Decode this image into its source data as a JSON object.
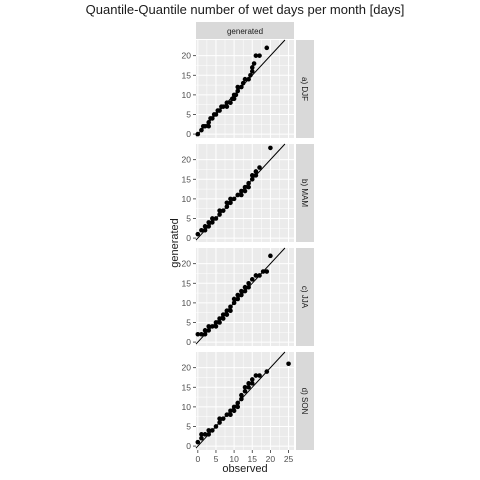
{
  "chart_data": {
    "type": "scatter",
    "title": "Quantile-Quantile number of wet days per month [days]",
    "xlabel": "observed",
    "ylabel": "generated",
    "column_strip": "generated",
    "xlim": [
      -0.5,
      26.5
    ],
    "ylim": [
      -1,
      24
    ],
    "xticks": [
      0,
      5,
      10,
      15,
      20,
      25
    ],
    "yticks": [
      0,
      5,
      10,
      15,
      20
    ],
    "grid": true,
    "reference_line": "y = x",
    "colors": {
      "panel": "#ebebeb",
      "strip": "#d9d9d9",
      "grid": "#ffffff",
      "point": "#000000",
      "line": "#000000"
    },
    "panels": [
      {
        "label": "a) DJF",
        "points": [
          [
            0,
            0
          ],
          [
            1,
            1
          ],
          [
            1.5,
            2
          ],
          [
            2,
            2
          ],
          [
            3,
            2
          ],
          [
            3,
            3
          ],
          [
            3.5,
            4
          ],
          [
            4,
            4
          ],
          [
            4.5,
            5
          ],
          [
            5,
            5
          ],
          [
            5.5,
            6
          ],
          [
            6,
            6
          ],
          [
            6.5,
            7
          ],
          [
            7,
            7
          ],
          [
            8,
            7
          ],
          [
            8,
            8
          ],
          [
            9,
            8
          ],
          [
            9.5,
            9
          ],
          [
            10,
            9
          ],
          [
            10,
            10
          ],
          [
            10.5,
            10
          ],
          [
            11,
            11
          ],
          [
            11,
            12
          ],
          [
            12,
            12
          ],
          [
            12.5,
            13
          ],
          [
            13,
            14
          ],
          [
            14,
            14
          ],
          [
            14.5,
            15
          ],
          [
            15,
            16
          ],
          [
            15,
            17
          ],
          [
            15.5,
            18
          ],
          [
            16,
            20
          ],
          [
            17,
            20
          ],
          [
            19,
            22
          ]
        ]
      },
      {
        "label": "b) MAM",
        "points": [
          [
            0,
            1
          ],
          [
            1,
            2
          ],
          [
            2,
            2
          ],
          [
            2,
            3
          ],
          [
            3,
            3
          ],
          [
            3,
            4
          ],
          [
            4,
            4
          ],
          [
            4,
            5
          ],
          [
            5,
            5
          ],
          [
            6,
            6
          ],
          [
            6,
            7
          ],
          [
            7,
            7
          ],
          [
            8,
            8
          ],
          [
            8,
            9
          ],
          [
            9,
            9
          ],
          [
            9,
            10
          ],
          [
            10,
            10
          ],
          [
            11,
            11
          ],
          [
            12,
            11
          ],
          [
            12,
            12
          ],
          [
            13,
            12
          ],
          [
            13,
            13
          ],
          [
            14,
            13
          ],
          [
            14,
            14
          ],
          [
            15,
            15
          ],
          [
            15,
            16
          ],
          [
            16,
            16
          ],
          [
            16,
            17
          ],
          [
            17,
            18
          ],
          [
            20,
            23
          ]
        ]
      },
      {
        "label": "c) JJA",
        "points": [
          [
            0,
            2
          ],
          [
            1,
            2
          ],
          [
            2,
            2
          ],
          [
            2,
            3
          ],
          [
            3,
            3
          ],
          [
            3,
            4
          ],
          [
            4,
            4
          ],
          [
            5,
            4
          ],
          [
            5,
            5
          ],
          [
            6,
            5
          ],
          [
            6,
            6
          ],
          [
            7,
            6
          ],
          [
            7,
            7
          ],
          [
            8,
            7
          ],
          [
            8,
            8
          ],
          [
            9,
            8
          ],
          [
            9,
            9
          ],
          [
            10,
            10
          ],
          [
            10,
            11
          ],
          [
            11,
            11
          ],
          [
            11,
            12
          ],
          [
            12,
            12
          ],
          [
            12,
            13
          ],
          [
            13,
            13
          ],
          [
            13,
            14
          ],
          [
            14,
            14
          ],
          [
            14,
            15
          ],
          [
            15,
            16
          ],
          [
            16,
            17
          ],
          [
            17,
            17
          ],
          [
            18,
            18
          ],
          [
            19,
            18
          ],
          [
            20,
            22
          ]
        ]
      },
      {
        "label": "d) SON",
        "points": [
          [
            0,
            1
          ],
          [
            1,
            2
          ],
          [
            1,
            3
          ],
          [
            2,
            3
          ],
          [
            3,
            3
          ],
          [
            3,
            4
          ],
          [
            4,
            4
          ],
          [
            5,
            5
          ],
          [
            6,
            6
          ],
          [
            6,
            7
          ],
          [
            7,
            7
          ],
          [
            8,
            8
          ],
          [
            9,
            8
          ],
          [
            9,
            9
          ],
          [
            10,
            9
          ],
          [
            10,
            10
          ],
          [
            11,
            10
          ],
          [
            11,
            11
          ],
          [
            12,
            12
          ],
          [
            12,
            13
          ],
          [
            13,
            14
          ],
          [
            13,
            15
          ],
          [
            14,
            15
          ],
          [
            14,
            16
          ],
          [
            15,
            16
          ],
          [
            15,
            17
          ],
          [
            16,
            18
          ],
          [
            17,
            18
          ],
          [
            19,
            19
          ],
          [
            25,
            21
          ]
        ]
      }
    ]
  }
}
